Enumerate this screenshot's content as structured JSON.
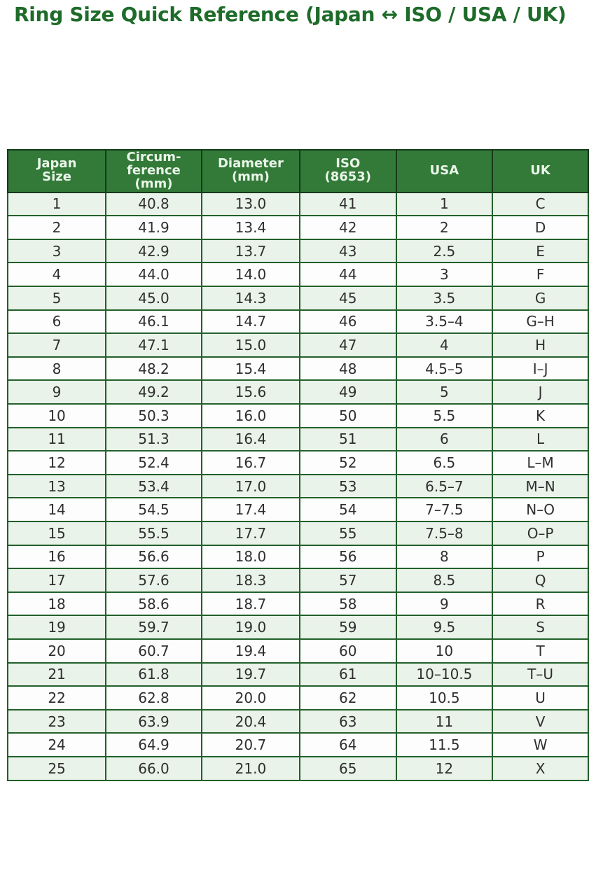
{
  "page": {
    "title": "Ring Size Quick Reference (Japan ↔ ISO / USA / UK)"
  },
  "colors": {
    "title_text": "#1e6b2a",
    "header_bg": "#337a38",
    "header_text": "#eaf5e9",
    "outer_border": "#16391b",
    "cell_border": "#23602a",
    "row_alt_bg": "#e9f3ea",
    "row_bg": "#fdfdfd",
    "cell_text": "#2f2f2f"
  },
  "chart_data": {
    "type": "table",
    "title": "Ring Size Quick Reference (Japan ↔ ISO / USA / UK)",
    "columns": [
      "Japan\nSize",
      "Circum-\nference\n(mm)",
      "Diameter\n(mm)",
      "ISO\n(8653)",
      "USA",
      "UK"
    ],
    "rows": [
      [
        "1",
        "40.8",
        "13.0",
        "41",
        "1",
        "C"
      ],
      [
        "2",
        "41.9",
        "13.4",
        "42",
        "2",
        "D"
      ],
      [
        "3",
        "42.9",
        "13.7",
        "43",
        "2.5",
        "E"
      ],
      [
        "4",
        "44.0",
        "14.0",
        "44",
        "3",
        "F"
      ],
      [
        "5",
        "45.0",
        "14.3",
        "45",
        "3.5",
        "G"
      ],
      [
        "6",
        "46.1",
        "14.7",
        "46",
        "3.5–4",
        "G–H"
      ],
      [
        "7",
        "47.1",
        "15.0",
        "47",
        "4",
        "H"
      ],
      [
        "8",
        "48.2",
        "15.4",
        "48",
        "4.5–5",
        "I–J"
      ],
      [
        "9",
        "49.2",
        "15.6",
        "49",
        "5",
        "J"
      ],
      [
        "10",
        "50.3",
        "16.0",
        "50",
        "5.5",
        "K"
      ],
      [
        "11",
        "51.3",
        "16.4",
        "51",
        "6",
        "L"
      ],
      [
        "12",
        "52.4",
        "16.7",
        "52",
        "6.5",
        "L–M"
      ],
      [
        "13",
        "53.4",
        "17.0",
        "53",
        "6.5–7",
        "M–N"
      ],
      [
        "14",
        "54.5",
        "17.4",
        "54",
        "7–7.5",
        "N–O"
      ],
      [
        "15",
        "55.5",
        "17.7",
        "55",
        "7.5–8",
        "O–P"
      ],
      [
        "16",
        "56.6",
        "18.0",
        "56",
        "8",
        "P"
      ],
      [
        "17",
        "57.6",
        "18.3",
        "57",
        "8.5",
        "Q"
      ],
      [
        "18",
        "58.6",
        "18.7",
        "58",
        "9",
        "R"
      ],
      [
        "19",
        "59.7",
        "19.0",
        "59",
        "9.5",
        "S"
      ],
      [
        "20",
        "60.7",
        "19.4",
        "60",
        "10",
        "T"
      ],
      [
        "21",
        "61.8",
        "19.7",
        "61",
        "10–10.5",
        "T–U"
      ],
      [
        "22",
        "62.8",
        "20.0",
        "62",
        "10.5",
        "U"
      ],
      [
        "23",
        "63.9",
        "20.4",
        "63",
        "11",
        "V"
      ],
      [
        "24",
        "64.9",
        "20.7",
        "64",
        "11.5",
        "W"
      ],
      [
        "25",
        "66.0",
        "21.0",
        "65",
        "12",
        "X"
      ]
    ]
  }
}
